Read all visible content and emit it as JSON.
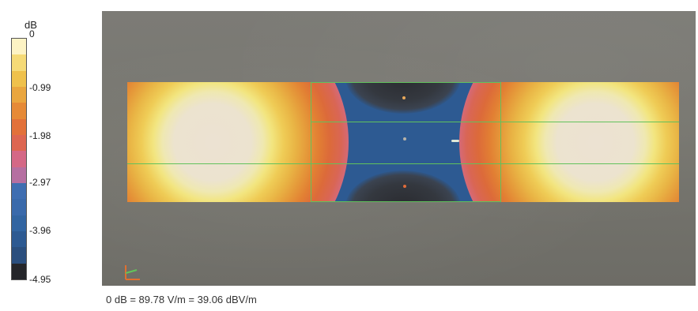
{
  "legend": {
    "unit": "dB",
    "ticks": [
      "0",
      "-0.99",
      "-1.98",
      "-2.97",
      "-3.96",
      "-4.95"
    ],
    "colors": [
      "#fdf3c4",
      "#f5da77",
      "#efc14c",
      "#eaa63f",
      "#e68a37",
      "#e2713a",
      "#dd6651",
      "#d46886",
      "#b56fa1",
      "#3f6eb1",
      "#3a6aab",
      "#3265a1",
      "#2d5a92",
      "#2b4f7e",
      "#25262a"
    ]
  },
  "caption": "0 dB = 89.78 V/m = 39.06 dBV/m"
}
